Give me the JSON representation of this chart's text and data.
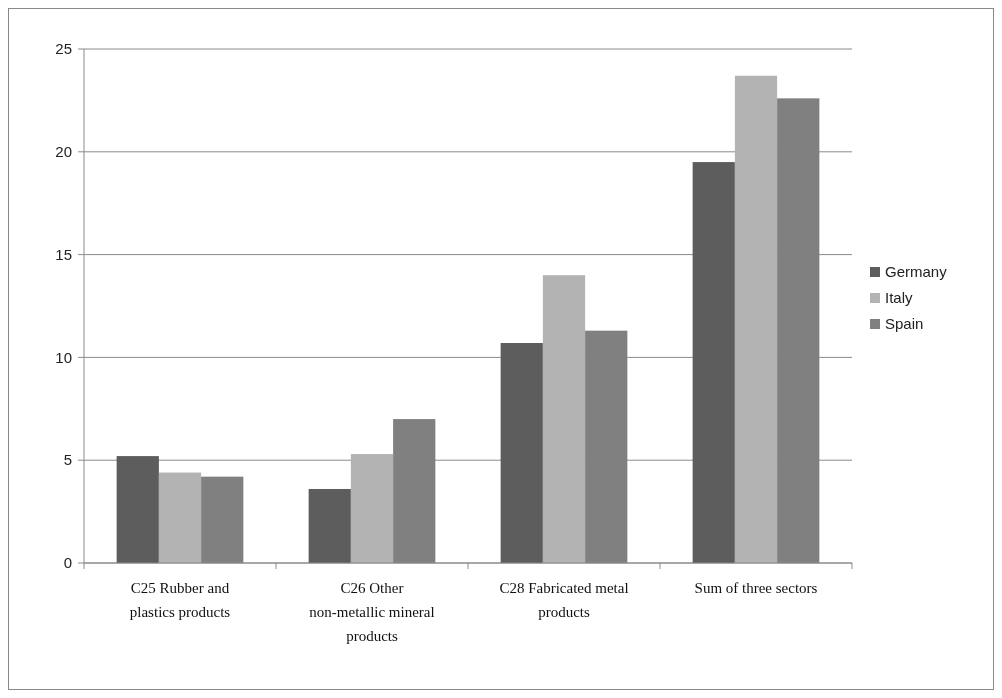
{
  "chart_data": {
    "type": "bar",
    "categories": [
      "C25 Rubber and plastics products",
      "C26 Other non-metallic mineral products",
      "C28 Fabricated metal products",
      "Sum of three sectors"
    ],
    "series": [
      {
        "name": "Germany",
        "color": "#5d5d5d",
        "values": [
          5.2,
          3.6,
          10.7,
          19.5
        ]
      },
      {
        "name": "Italy",
        "color": "#b3b3b3",
        "values": [
          4.4,
          5.3,
          14.0,
          23.7
        ]
      },
      {
        "name": "Spain",
        "color": "#808080",
        "values": [
          4.2,
          7.0,
          11.3,
          22.6
        ]
      }
    ],
    "ylim": [
      0,
      25
    ],
    "yticks": [
      0,
      5,
      10,
      15,
      20,
      25
    ],
    "grid": "y",
    "legend": "right"
  }
}
